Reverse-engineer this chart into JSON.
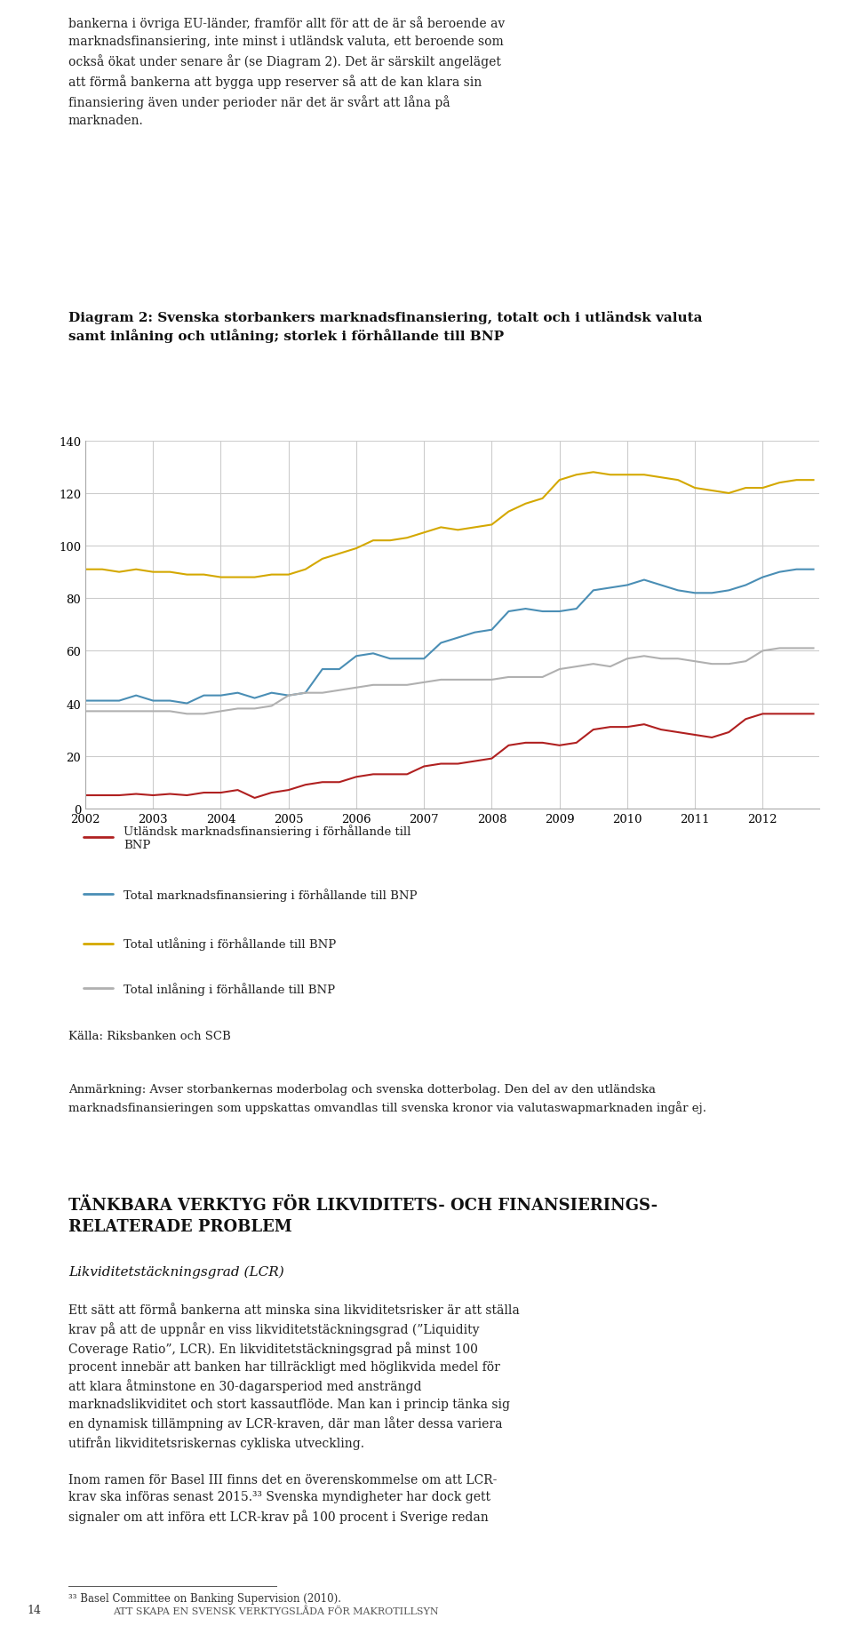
{
  "title": "Diagram 2: Svenska storbankers marknadsfinansiering, totalt och i utländsk valuta\nsamt inlåning och utlåning; storlek i förhållande till BNP",
  "title_fontsize": 11,
  "ylim": [
    0,
    140
  ],
  "yticks": [
    0,
    20,
    40,
    60,
    80,
    100,
    120,
    140
  ],
  "xlim": [
    2002.0,
    2012.83
  ],
  "xticks": [
    2002,
    2003,
    2004,
    2005,
    2006,
    2007,
    2008,
    2009,
    2010,
    2011,
    2012
  ],
  "background_color": "#ffffff",
  "grid_color": "#cccccc",
  "series": {
    "red": {
      "color": "#b02020",
      "label": "Utländsk marknadsfinansiering i förhållande till\nBNP",
      "data_x": [
        2002.0,
        2002.25,
        2002.5,
        2002.75,
        2003.0,
        2003.25,
        2003.5,
        2003.75,
        2004.0,
        2004.25,
        2004.5,
        2004.75,
        2005.0,
        2005.25,
        2005.5,
        2005.75,
        2006.0,
        2006.25,
        2006.5,
        2006.75,
        2007.0,
        2007.25,
        2007.5,
        2007.75,
        2008.0,
        2008.25,
        2008.5,
        2008.75,
        2009.0,
        2009.25,
        2009.5,
        2009.75,
        2010.0,
        2010.25,
        2010.5,
        2010.75,
        2011.0,
        2011.25,
        2011.5,
        2011.75,
        2012.0,
        2012.25,
        2012.5,
        2012.75
      ],
      "data_y": [
        5,
        5,
        5,
        5.5,
        5,
        5.5,
        5,
        6,
        6,
        7,
        4,
        6,
        7,
        9,
        10,
        10,
        12,
        13,
        13,
        13,
        16,
        17,
        17,
        18,
        19,
        24,
        25,
        25,
        24,
        25,
        30,
        31,
        31,
        32,
        30,
        29,
        28,
        27,
        29,
        34,
        36,
        36,
        36,
        36
      ]
    },
    "blue": {
      "color": "#4a8eb5",
      "label": "Total marknadsfinansiering i förhållande till BNP",
      "data_x": [
        2002.0,
        2002.25,
        2002.5,
        2002.75,
        2003.0,
        2003.25,
        2003.5,
        2003.75,
        2004.0,
        2004.25,
        2004.5,
        2004.75,
        2005.0,
        2005.25,
        2005.5,
        2005.75,
        2006.0,
        2006.25,
        2006.5,
        2006.75,
        2007.0,
        2007.25,
        2007.5,
        2007.75,
        2008.0,
        2008.25,
        2008.5,
        2008.75,
        2009.0,
        2009.25,
        2009.5,
        2009.75,
        2010.0,
        2010.25,
        2010.5,
        2010.75,
        2011.0,
        2011.25,
        2011.5,
        2011.75,
        2012.0,
        2012.25,
        2012.5,
        2012.75
      ],
      "data_y": [
        41,
        41,
        41,
        43,
        41,
        41,
        40,
        43,
        43,
        44,
        42,
        44,
        43,
        44,
        53,
        53,
        58,
        59,
        57,
        57,
        57,
        63,
        65,
        67,
        68,
        75,
        76,
        75,
        75,
        76,
        83,
        84,
        85,
        87,
        85,
        83,
        82,
        82,
        83,
        85,
        88,
        90,
        91,
        91
      ]
    },
    "yellow": {
      "color": "#d4a800",
      "label": "Total utlåning i förhållande till BNP",
      "data_x": [
        2002.0,
        2002.25,
        2002.5,
        2002.75,
        2003.0,
        2003.25,
        2003.5,
        2003.75,
        2004.0,
        2004.25,
        2004.5,
        2004.75,
        2005.0,
        2005.25,
        2005.5,
        2005.75,
        2006.0,
        2006.25,
        2006.5,
        2006.75,
        2007.0,
        2007.25,
        2007.5,
        2007.75,
        2008.0,
        2008.25,
        2008.5,
        2008.75,
        2009.0,
        2009.25,
        2009.5,
        2009.75,
        2010.0,
        2010.25,
        2010.5,
        2010.75,
        2011.0,
        2011.25,
        2011.5,
        2011.75,
        2012.0,
        2012.25,
        2012.5,
        2012.75
      ],
      "data_y": [
        91,
        91,
        90,
        91,
        90,
        90,
        89,
        89,
        88,
        88,
        88,
        89,
        89,
        91,
        95,
        97,
        99,
        102,
        102,
        103,
        105,
        107,
        106,
        107,
        108,
        113,
        116,
        118,
        125,
        127,
        128,
        127,
        127,
        127,
        126,
        125,
        122,
        121,
        120,
        122,
        122,
        124,
        125,
        125
      ]
    },
    "gray": {
      "color": "#b0b0b0",
      "label": "Total inlåning i förhållande till BNP",
      "data_x": [
        2002.0,
        2002.25,
        2002.5,
        2002.75,
        2003.0,
        2003.25,
        2003.5,
        2003.75,
        2004.0,
        2004.25,
        2004.5,
        2004.75,
        2005.0,
        2005.25,
        2005.5,
        2005.75,
        2006.0,
        2006.25,
        2006.5,
        2006.75,
        2007.0,
        2007.25,
        2007.5,
        2007.75,
        2008.0,
        2008.25,
        2008.5,
        2008.75,
        2009.0,
        2009.25,
        2009.5,
        2009.75,
        2010.0,
        2010.25,
        2010.5,
        2010.75,
        2011.0,
        2011.25,
        2011.5,
        2011.75,
        2012.0,
        2012.25,
        2012.5,
        2012.75
      ],
      "data_y": [
        37,
        37,
        37,
        37,
        37,
        37,
        36,
        36,
        37,
        38,
        38,
        39,
        43,
        44,
        44,
        45,
        46,
        47,
        47,
        47,
        48,
        49,
        49,
        49,
        49,
        50,
        50,
        50,
        53,
        54,
        55,
        54,
        57,
        58,
        57,
        57,
        56,
        55,
        55,
        56,
        60,
        61,
        61,
        61
      ]
    }
  },
  "legend_items": [
    {
      "color": "#b02020",
      "label": "Utländsk marknadsfinansiering i förhållande till\nBNP"
    },
    {
      "color": "#4a8eb5",
      "label": "Total marknadsfinansiering i förhållande till BNP"
    },
    {
      "color": "#d4a800",
      "label": "Total utlåning i förhållande till BNP"
    },
    {
      "color": "#b0b0b0",
      "label": "Total inlåning i förhållande till BNP"
    }
  ],
  "source_text": "Källa: Riksbanken och SCB",
  "note_text": "Anmärkning: Avser storbankernas moderbolag och svenska dotterbolag. Den del av den utländska\nmarknadsfinansieringen som uppskattas omvandlas till svenska kronor via valutaswapmarknaden ingår ej.",
  "page_texts": {
    "top_text": "bankerna i övriga EU-länder, framför allt för att de är så beroende av\nmarknadsfinansiering, inte minst i utländsk valuta, ett beroende som\nockså ökat under senare år (se Diagram 2). Det är särskilt angeläget\natt förmå bankerna att bygga upp reserver så att de kan klara sin\nfinansiering även under perioder när det är svårt att låna på\nmarknaden.",
    "bottom_title": "TÄNKBARA VERKTYG FÖR LIKVIDITETS- OCH FINANSIERINGS-\nRELATERADE PROBLEM",
    "bottom_sub": "Likviditetstäckningsgrad (LCR)",
    "bottom_para1": "Ett sätt att förmå bankerna att minska sina likviditetsrisker är att ställa\nkrav på att de uppnår en viss likviditetstäckningsgrad (”Liquidity\nCoverage Ratio”, LCR). En likviditetstäckningsgrad på minst 100\nprocent innebär att banken har tillräckligt med höglikvida medel för\natt klara åtminstone en 30-dagarsperiod med ansträngd\nmarknadslikviditet och stort kassautflöde. Man kan i princip tänka sig\nen dynamisk tillämpning av LCR-kraven, där man låter dessa variera\nutifrån likviditetsriskernas cykliska utveckling.",
    "bottom_para2": "Inom ramen för Basel III finns det en överenskommelse om att LCR-\nkrav ska införas senast 2015.³³ Svenska myndigheter har dock gett\nsignaler om att införa ett LCR-krav på 100 procent i Sverige redan",
    "footnote": "³³ Basel Committee on Banking Supervision (2010).",
    "page_num": "14",
    "att_text": "ATT SKAPA EN SVENSK VERKTYGSLÅDA FÖR MAKROTILLSYN"
  }
}
